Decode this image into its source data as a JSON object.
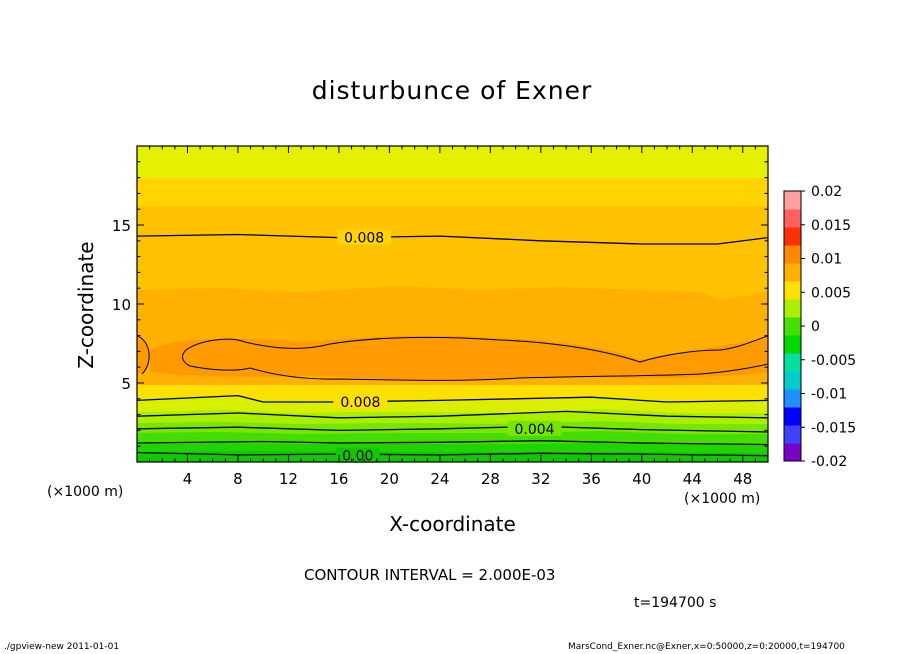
{
  "figure": {
    "title": "disturbunce of Exner",
    "contour_interval_text": "CONTOUR INTERVAL = 2.000E-03",
    "time_text": "t=194700  s",
    "footer_left": "./gpview-new   2011-01-01",
    "footer_right": "MarsCond_Exner.nc@Exner,x=0:50000,z=0:20000,t=194700"
  },
  "colors": {
    "level_fills": [
      "#7a00c8",
      "#4040ff",
      "#0000ff",
      "#1e90ff",
      "#00cccc",
      "#00e0a0",
      "#00d800",
      "#44e000",
      "#aaf000",
      "#ffe000",
      "#ffb000",
      "#ff8800",
      "#ff3000",
      "#ff6060",
      "#ffa0a0"
    ],
    "contour_line": "#000000"
  },
  "chart_data": {
    "type": "contour",
    "title": "disturbunce of Exner",
    "xlabel": "X-coordinate",
    "ylabel": "Z-coordinate",
    "x_unit": "(×1000 m)",
    "xlim": [
      0,
      50
    ],
    "ylim": [
      0,
      20
    ],
    "x_ticks": [
      4,
      8,
      12,
      16,
      20,
      24,
      28,
      32,
      36,
      40,
      44,
      48
    ],
    "y_ticks": [
      5,
      10,
      15
    ],
    "colorbar": {
      "levels": [
        -0.02,
        -0.015,
        -0.01,
        -0.005,
        0,
        0.005,
        0.01,
        0.015,
        0.02
      ],
      "tick_labels": [
        "-0.02",
        "-0.015",
        "-0.01",
        "-0.005",
        "0",
        "0.005",
        "0.01",
        "0.015",
        "0.02"
      ]
    },
    "contour_interval": 0.002,
    "time_s": 194700,
    "contour_labels": [
      {
        "text": "0.008",
        "x": 18,
        "z": 14.2
      },
      {
        "text": "0.008",
        "x": 17.7,
        "z": 3.8
      },
      {
        "text": "0.004",
        "x": 31.5,
        "z": 2.1
      },
      {
        "text": "0.00",
        "x": 17.5,
        "z": 0.4
      }
    ],
    "contour_lines": [
      {
        "level": 0.0,
        "z": [
          [
            0,
            0.6
          ],
          [
            8,
            0.45
          ],
          [
            16,
            0.5
          ],
          [
            24,
            0.45
          ],
          [
            32,
            0.55
          ],
          [
            40,
            0.5
          ],
          [
            50,
            0.4
          ]
        ]
      },
      {
        "level": 0.002,
        "z": [
          [
            0,
            1.2
          ],
          [
            10,
            1.3
          ],
          [
            16,
            1.2
          ],
          [
            24,
            1.25
          ],
          [
            32,
            1.35
          ],
          [
            40,
            1.2
          ],
          [
            50,
            1.1
          ]
        ]
      },
      {
        "level": 0.004,
        "z": [
          [
            0,
            2.1
          ],
          [
            8,
            2.2
          ],
          [
            16,
            2.0
          ],
          [
            24,
            2.1
          ],
          [
            32,
            2.25
          ],
          [
            40,
            2.05
          ],
          [
            50,
            1.9
          ]
        ]
      },
      {
        "level": 0.006,
        "z": [
          [
            0,
            2.9
          ],
          [
            8,
            3.1
          ],
          [
            16,
            2.8
          ],
          [
            24,
            2.9
          ],
          [
            34,
            3.2
          ],
          [
            42,
            2.9
          ],
          [
            50,
            2.8
          ]
        ]
      },
      {
        "level": 0.008,
        "z": [
          [
            0,
            3.9
          ],
          [
            8,
            4.2
          ],
          [
            10,
            3.8
          ],
          [
            16,
            3.8
          ],
          [
            24,
            3.9
          ],
          [
            36,
            4.1
          ],
          [
            42,
            3.8
          ],
          [
            50,
            3.9
          ]
        ]
      },
      {
        "level": 0.008,
        "z": [
          [
            0,
            14.3
          ],
          [
            8,
            14.4
          ],
          [
            16,
            14.2
          ],
          [
            24,
            14.3
          ],
          [
            32,
            14.0
          ],
          [
            40,
            13.8
          ],
          [
            46,
            13.8
          ],
          [
            50,
            14.2
          ]
        ]
      }
    ]
  }
}
